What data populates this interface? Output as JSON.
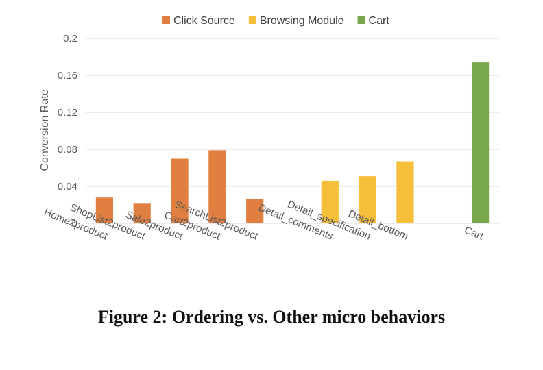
{
  "caption": "Figure 2: Ordering vs. Other micro behaviors",
  "chart_data": {
    "type": "bar",
    "ylabel": "Conversion Rate",
    "xlabel": "",
    "ylim": [
      0,
      0.2
    ],
    "yticks": [
      "0",
      "0.04",
      "0.08",
      "0.12",
      "0.16",
      "0.2"
    ],
    "grid": true,
    "legend_position": "top-center",
    "series": [
      {
        "name": "Click Source",
        "color": "#e07f3f",
        "categories": [
          "Home2product",
          "ShopList2product",
          "Sale2product",
          "Cart2product",
          "SearchList2product"
        ],
        "values": [
          0.028,
          0.022,
          0.07,
          0.079,
          0.026
        ]
      },
      {
        "name": "Browsing Module",
        "color": "#f5bf3c",
        "categories": [
          "Detail_comments",
          "Detail_specification",
          "Detail_bottom"
        ],
        "values": [
          0.046,
          0.051,
          0.067
        ]
      },
      {
        "name": "Cart",
        "color": "#78a84e",
        "categories": [
          "Cart"
        ],
        "values": [
          0.174
        ]
      }
    ]
  }
}
